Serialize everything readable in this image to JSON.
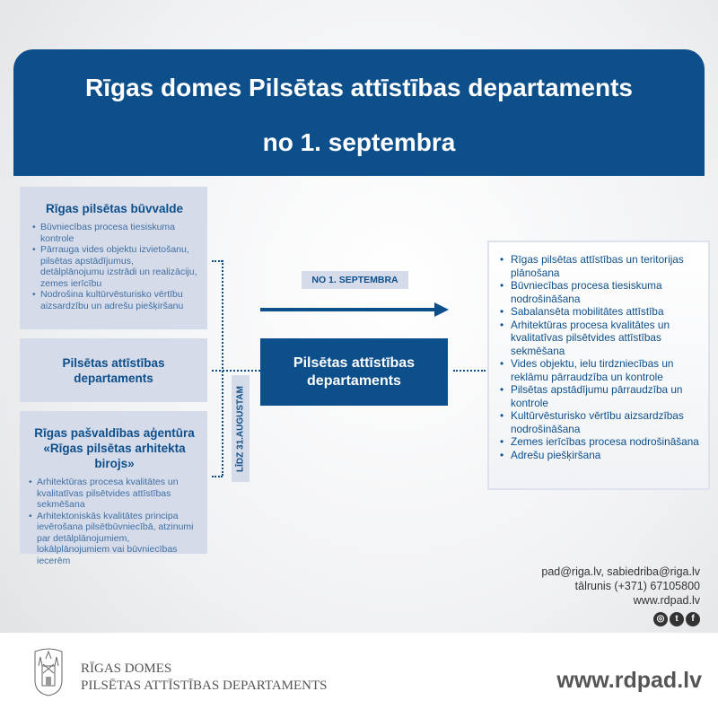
{
  "header": {
    "line1": "Rīgas domes Pilsētas attīstības departaments",
    "line2": "no 1. septembra"
  },
  "left_boxes": [
    {
      "title": "Rīgas pilsētas būvvalde",
      "items": [
        "Būvniecības procesa tiesiskuma kontrole",
        "Pārrauga vides objektu izvietošanu, pilsētas apstādījumus, detālplānojumu izstrādi un realizāciju, zemes ierīcību",
        "Nodrošina kultūrvēsturisko vērtību aizsardzību un adrešu piešķiršanu"
      ]
    },
    {
      "title": "Pilsētas attīstības departaments",
      "items": []
    },
    {
      "title": "Rīgas pašvaldības aģentūra «Rīgas pilsētas arhitekta birojs»",
      "items": [
        "Arhitektūras procesa kvalitātes un kvalitatīvas pilsētvides attīstības sekmēšana",
        "Arhitektoniskās kvalitātes principa ievērošana pilsētbūvniecībā, atzinumi par detālplānojumiem, lokālplānojumiem vai būvniecības iecerēm"
      ]
    }
  ],
  "until_label": "LĪDZ 31.AUGUSTAM",
  "from_label": "NO 1. SEPTEMBRA",
  "center_box": "Pilsētas attīstības departaments",
  "right_items": [
    "Rīgas pilsētas attīstības un teritorijas plānošana",
    "Būvniecības procesa tiesiskuma nodrošināšana",
    "Sabalansēta mobilitātes attīstība",
    "Arhitektūras procesa kvalitātes un kvalitatīvas pilsētvides attīstības sekmēšana",
    "Vides objektu, ielu tirdzniecības un reklāmu pārraudzība un kontrole",
    "Pilsētas apstādījumu pārraudzība un kontrole",
    "Kultūrvēsturisko vērtību aizsardzības nodrošināšana",
    "Zemes ierīcības procesa nodrošināšana",
    "Adrešu piešķiršana"
  ],
  "contacts": {
    "emails": "pad@riga.lv, sabiedriba@riga.lv",
    "phone": "tālrunis (+371) 67105800",
    "web": "www.rdpad.lv",
    "social": [
      "instagram-icon",
      "twitter-icon",
      "facebook-icon"
    ]
  },
  "footer": {
    "org_line1": "RĪGAS DOMES",
    "org_line2": "PILSĒTAS ATTĪSTĪBAS DEPARTAMENTS",
    "website": "www.rdpad.lv"
  },
  "colors": {
    "primary": "#0d4f8b",
    "box": "#d6dbea"
  }
}
